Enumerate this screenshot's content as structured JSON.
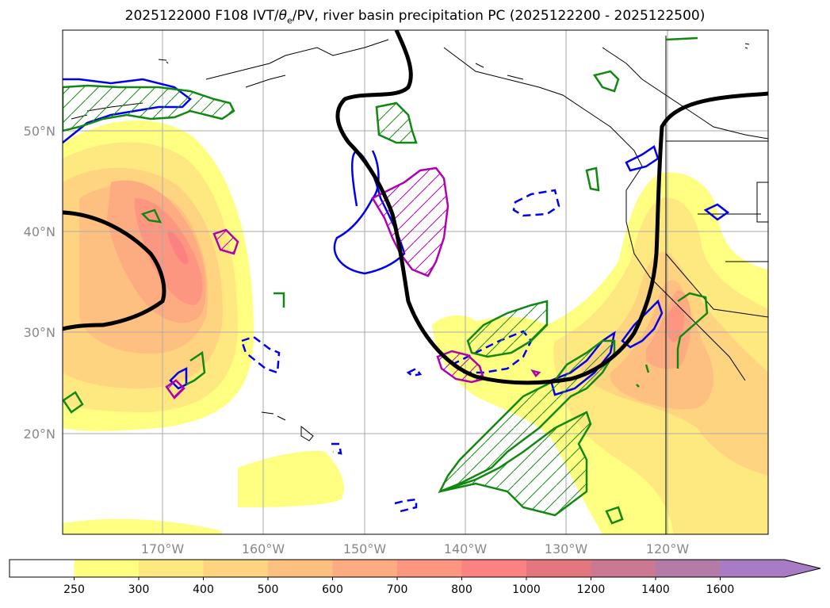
{
  "title": {
    "prefix": "2025122000 F108 IVT/",
    "theta": "θ",
    "theta_sub": "e",
    "suffix": "/PV, river basin precipitation PC (2025122200 - 2025122500)"
  },
  "map": {
    "lat_labels": [
      "50°N",
      "40°N",
      "30°N",
      "20°N"
    ],
    "lon_labels": [
      "170°W",
      "160°W",
      "150°W",
      "140°W",
      "130°W",
      "120°W"
    ]
  },
  "colorbar": {
    "ticks": [
      "250",
      "300",
      "400",
      "500",
      "600",
      "700",
      "800",
      "1000",
      "1200",
      "1400",
      "1600"
    ],
    "colors": [
      "#ffffff",
      "#fefe80",
      "#fee981",
      "#fed481",
      "#fdc080",
      "#fdab80",
      "#fc9680",
      "#fb8280",
      "#e3767f",
      "#cb7993",
      "#b57ba8",
      "#a87cc5",
      "#a87cc5"
    ]
  }
}
